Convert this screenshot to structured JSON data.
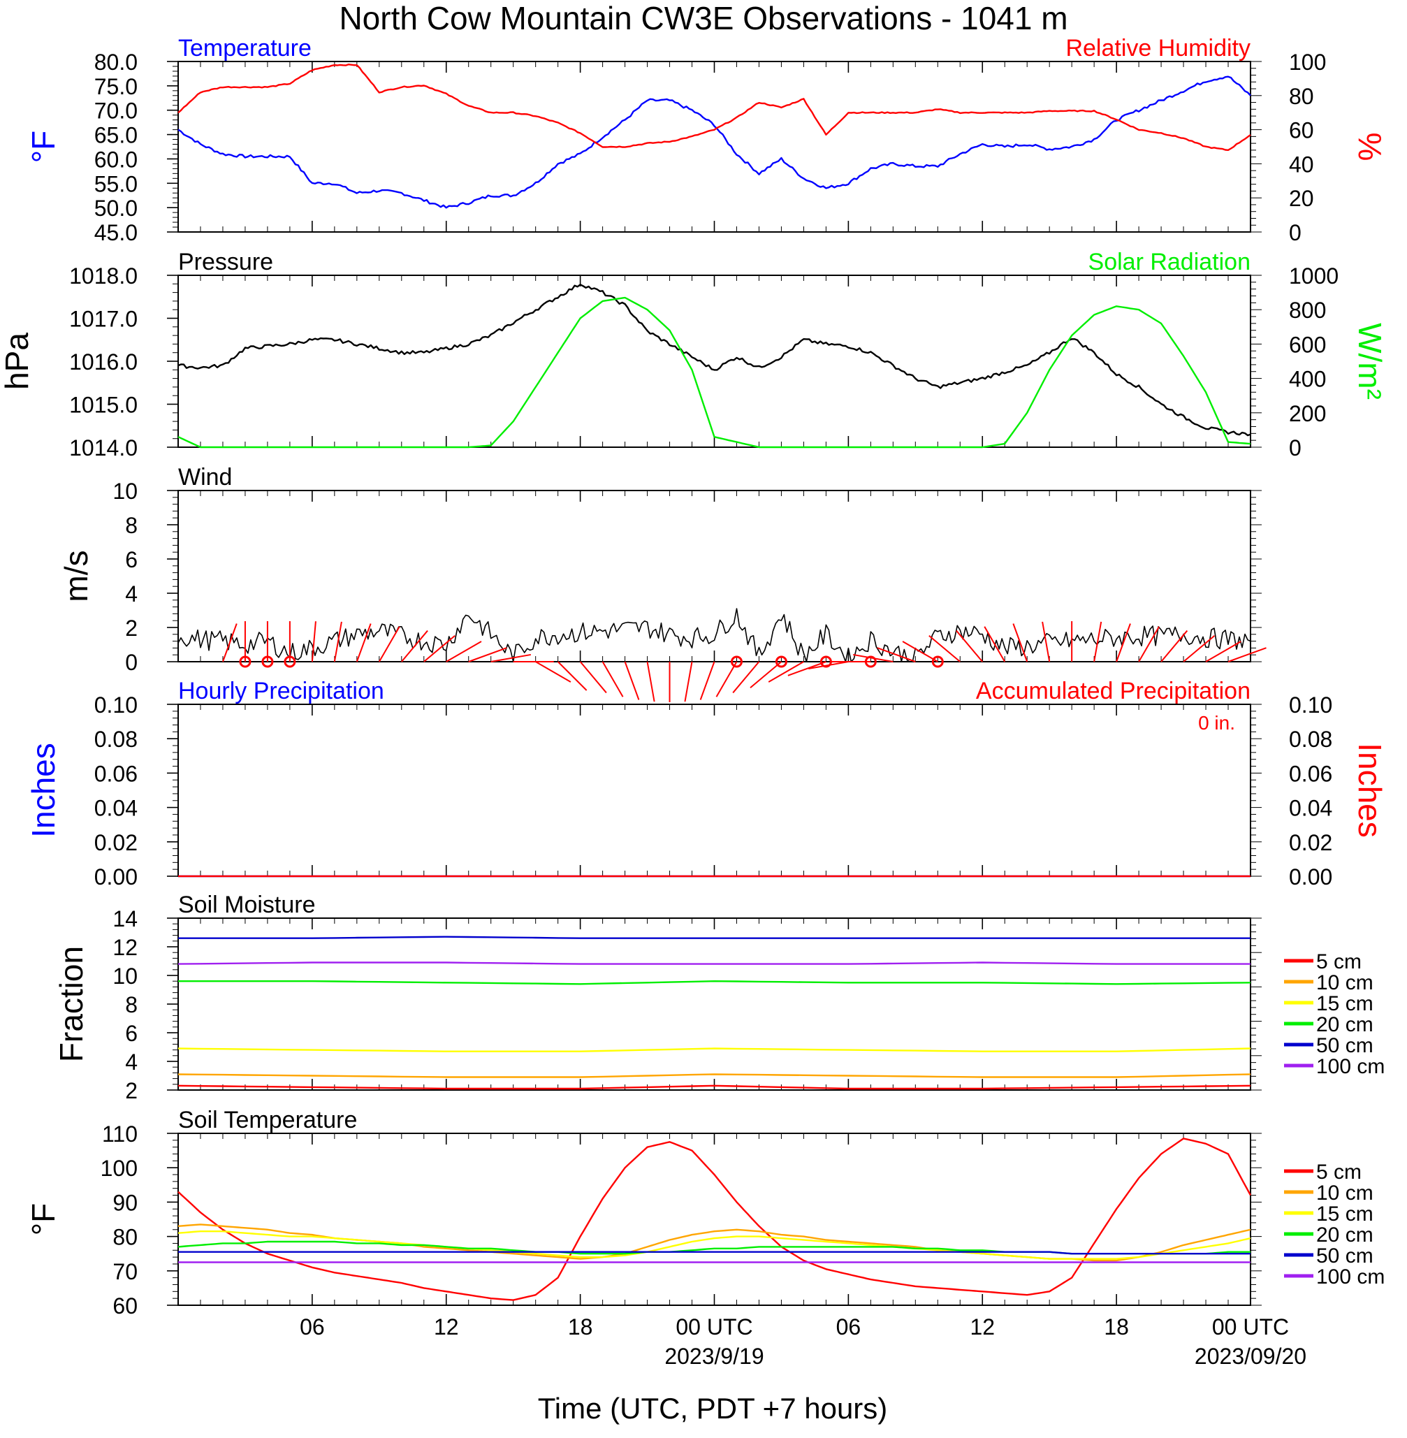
{
  "title": "North Cow Mountain CW3E Observations - 1041 m",
  "x_axis": {
    "title": "Time (UTC, PDT +7 hours)",
    "tick_labels": [
      "06",
      "12",
      "18",
      "00 UTC",
      "06",
      "12",
      "18",
      "00 UTC"
    ],
    "date_labels": [
      "2023/9/19",
      "2023/09/20"
    ]
  },
  "colors": {
    "temperature": "#0000ff",
    "humidity": "#ff0000",
    "pressure": "#000000",
    "solar": "#00ee00",
    "wind": "#000000",
    "barb": "#ff0000",
    "precip_hourly": "#0000ff",
    "precip_accum": "#ff0000",
    "depth_5cm": "#ff0000",
    "depth_10cm": "#ffa500",
    "depth_15cm": "#ffff00",
    "depth_20cm": "#00ee00",
    "depth_50cm": "#0000cd",
    "depth_100cm": "#a020f0"
  },
  "chart_data": [
    {
      "id": "temp_rh",
      "type": "line",
      "title_left": "Temperature",
      "title_right": "Relative Humidity",
      "ylabel_left": "°F",
      "ylabel_right": "%",
      "ylim_left": [
        45,
        80
      ],
      "ylim_right": [
        0,
        100
      ],
      "ytick_labels_left": [
        "45.0",
        "50.0",
        "55.0",
        "60.0",
        "65.0",
        "70.0",
        "75.0",
        "80.0"
      ],
      "ytick_labels_right": [
        "0",
        "20",
        "40",
        "60",
        "80",
        "100"
      ],
      "x_hours": [
        0,
        1,
        2,
        3,
        4,
        5,
        6,
        7,
        8,
        9,
        10,
        11,
        12,
        13,
        14,
        15,
        16,
        17,
        18,
        19,
        20,
        21,
        22,
        23,
        24,
        25,
        26,
        27,
        28,
        29,
        30,
        31,
        32,
        33,
        34,
        35,
        36,
        37,
        38,
        39,
        40,
        41,
        42,
        43,
        44,
        45,
        46,
        47,
        48
      ],
      "series": [
        {
          "name": "Temperature",
          "axis": "left",
          "values": [
            66,
            63,
            61,
            60.5,
            60.5,
            60.5,
            55,
            55,
            53,
            53.5,
            53,
            51.5,
            50,
            51,
            52.5,
            52.5,
            55,
            59,
            61,
            64.5,
            68,
            72,
            72,
            70,
            67,
            61,
            57,
            60,
            56,
            54,
            55,
            58,
            59,
            58.5,
            58.5,
            61,
            63,
            62.5,
            63,
            62,
            62.5,
            64,
            68,
            70,
            72,
            74,
            76,
            77,
            73
          ]
        },
        {
          "name": "Relative Humidity",
          "axis": "right",
          "values": [
            70,
            82,
            85,
            85,
            85,
            87,
            95,
            98,
            98,
            82,
            85,
            86,
            81,
            74,
            70,
            70,
            68,
            64,
            58,
            50,
            50,
            52,
            53,
            56,
            60,
            67,
            76,
            73,
            78,
            57,
            70,
            70,
            70,
            70,
            72,
            70,
            70,
            70,
            70,
            71,
            71,
            71,
            66,
            60,
            58,
            55,
            50,
            48,
            57
          ]
        }
      ]
    },
    {
      "id": "pressure_solar",
      "type": "line",
      "title_left": "Pressure",
      "title_right": "Solar Radiation",
      "ylabel_left": "hPa",
      "ylabel_right": "W/m²",
      "ylim_left": [
        1014.0,
        1018.0
      ],
      "ylim_right": [
        0,
        1000
      ],
      "ytick_labels_left": [
        "1014.0",
        "1015.0",
        "1016.0",
        "1017.0",
        "1018.0"
      ],
      "ytick_labels_right": [
        "0",
        "200",
        "400",
        "600",
        "800",
        "1000"
      ],
      "x_hours": [
        0,
        1,
        2,
        3,
        4,
        5,
        6,
        7,
        8,
        9,
        10,
        11,
        12,
        13,
        14,
        15,
        16,
        17,
        18,
        19,
        20,
        21,
        22,
        23,
        24,
        25,
        26,
        27,
        28,
        29,
        30,
        31,
        32,
        33,
        34,
        35,
        36,
        37,
        38,
        39,
        40,
        41,
        42,
        43,
        44,
        45,
        46,
        47,
        48
      ],
      "series": [
        {
          "name": "Pressure",
          "axis": "left",
          "values": [
            1015.9,
            1015.85,
            1015.9,
            1016.3,
            1016.35,
            1016.4,
            1016.5,
            1016.5,
            1016.4,
            1016.3,
            1016.2,
            1016.2,
            1016.3,
            1016.4,
            1016.6,
            1016.9,
            1017.2,
            1017.5,
            1017.8,
            1017.6,
            1017.3,
            1016.7,
            1016.4,
            1016.1,
            1015.8,
            1016.1,
            1015.85,
            1016.1,
            1016.5,
            1016.4,
            1016.35,
            1016.2,
            1015.9,
            1015.6,
            1015.4,
            1015.5,
            1015.6,
            1015.75,
            1015.9,
            1016.2,
            1016.55,
            1016.2,
            1015.7,
            1015.4,
            1015.0,
            1014.7,
            1014.45,
            1014.35,
            1014.3
          ]
        },
        {
          "name": "Solar Radiation",
          "axis": "right",
          "values": [
            60,
            0,
            0,
            0,
            0,
            0,
            0,
            0,
            0,
            0,
            0,
            0,
            0,
            0,
            10,
            150,
            350,
            550,
            750,
            850,
            870,
            800,
            680,
            450,
            60,
            30,
            0,
            0,
            0,
            0,
            0,
            0,
            0,
            0,
            0,
            0,
            0,
            20,
            200,
            450,
            650,
            770,
            820,
            800,
            720,
            530,
            320,
            30,
            20
          ]
        }
      ]
    },
    {
      "id": "wind",
      "type": "line",
      "title_left": "Wind",
      "ylabel_left": "m/s",
      "ylim_left": [
        0,
        10
      ],
      "ytick_labels_left": [
        "0",
        "2",
        "4",
        "6",
        "8",
        "10"
      ],
      "x_hours": [
        0,
        1,
        2,
        3,
        4,
        5,
        6,
        7,
        8,
        9,
        10,
        11,
        12,
        13,
        14,
        15,
        16,
        17,
        18,
        19,
        20,
        21,
        22,
        23,
        24,
        25,
        26,
        27,
        28,
        29,
        30,
        31,
        32,
        33,
        34,
        35,
        36,
        37,
        38,
        39,
        40,
        41,
        42,
        43,
        44,
        45,
        46,
        47,
        48
      ],
      "series": [
        {
          "name": "Wind speed",
          "axis": "left",
          "values": [
            1.5,
            1.3,
            1.2,
            1.0,
            1.2,
            0.5,
            0.8,
            1.2,
            1.6,
            1.8,
            1.5,
            1.2,
            1.0,
            2.8,
            1.6,
            0.3,
            1.4,
            1.6,
            1.7,
            1.8,
            1.9,
            2.0,
            1.6,
            1.4,
            1.6,
            2.8,
            0.3,
            2.8,
            0.3,
            1.6,
            0.2,
            1.3,
            0.6,
            0.2,
            1.5,
            1.8,
            1.6,
            0.8,
            0.9,
            1.1,
            1.2,
            1.3,
            1.4,
            1.5,
            1.5,
            1.6,
            1.4,
            1.3,
            1.2
          ]
        }
      ],
      "barb_hours": [
        2,
        3,
        4,
        5,
        6,
        7,
        8,
        9,
        10,
        11,
        12,
        13,
        14,
        15,
        16,
        17,
        18,
        19,
        20,
        21,
        22,
        23,
        24,
        25,
        26,
        27,
        28,
        29,
        30,
        31,
        32,
        33,
        34,
        35,
        36,
        37,
        38,
        39,
        40,
        41,
        42,
        43,
        44,
        45,
        46,
        47
      ],
      "barb_angles_deg": [
        20,
        0,
        0,
        0,
        5,
        10,
        20,
        30,
        40,
        50,
        60,
        70,
        80,
        90,
        120,
        135,
        140,
        150,
        160,
        170,
        180,
        190,
        200,
        210,
        220,
        230,
        240,
        250,
        260,
        270,
        280,
        290,
        300,
        310,
        320,
        330,
        340,
        350,
        0,
        10,
        20,
        30,
        40,
        50,
        60,
        70
      ],
      "calm_hours": [
        3,
        4,
        5,
        25,
        27,
        29,
        31,
        34
      ]
    },
    {
      "id": "precip",
      "type": "line",
      "title_left": "Hourly Precipitation",
      "title_right": "Accumulated Precipitation",
      "annotation": "0 in.",
      "ylabel_left": "Inches",
      "ylabel_right": "Inches",
      "ylim_left": [
        0,
        0.1
      ],
      "ylim_right": [
        0,
        0.1
      ],
      "ytick_labels_left": [
        "0.00",
        "0.02",
        "0.04",
        "0.06",
        "0.08",
        "0.10"
      ],
      "ytick_labels_right": [
        "0.00",
        "0.02",
        "0.04",
        "0.06",
        "0.08",
        "0.10"
      ],
      "x_hours": [
        0,
        48
      ],
      "series": [
        {
          "name": "Hourly Precipitation",
          "axis": "left",
          "values": [
            0,
            0
          ]
        },
        {
          "name": "Accumulated Precipitation",
          "axis": "right",
          "values": [
            0,
            0
          ]
        }
      ]
    },
    {
      "id": "soil_moisture",
      "type": "line",
      "title_left": "Soil Moisture",
      "ylabel_left": "Fraction",
      "ylim_left": [
        2,
        14
      ],
      "ytick_labels_left": [
        "2",
        "4",
        "6",
        "8",
        "10",
        "12",
        "14"
      ],
      "x_hours": [
        0,
        6,
        12,
        18,
        24,
        30,
        36,
        42,
        48
      ],
      "series": [
        {
          "name": "5 cm",
          "values": [
            2.3,
            2.2,
            2.1,
            2.1,
            2.3,
            2.1,
            2.1,
            2.2,
            2.3
          ]
        },
        {
          "name": "10 cm",
          "values": [
            3.1,
            3.0,
            2.9,
            2.9,
            3.1,
            3.0,
            2.9,
            2.9,
            3.1
          ]
        },
        {
          "name": "15 cm",
          "values": [
            4.9,
            4.8,
            4.7,
            4.7,
            4.9,
            4.8,
            4.7,
            4.7,
            4.9
          ]
        },
        {
          "name": "20 cm",
          "values": [
            9.6,
            9.6,
            9.5,
            9.4,
            9.6,
            9.5,
            9.5,
            9.4,
            9.5
          ]
        },
        {
          "name": "50 cm",
          "values": [
            12.6,
            12.6,
            12.7,
            12.6,
            12.6,
            12.6,
            12.6,
            12.6,
            12.6
          ]
        },
        {
          "name": "100 cm",
          "values": [
            10.8,
            10.9,
            10.9,
            10.8,
            10.8,
            10.8,
            10.9,
            10.8,
            10.8
          ]
        }
      ],
      "legend": [
        "5 cm",
        "10 cm",
        "15 cm",
        "20 cm",
        "50 cm",
        "100 cm"
      ]
    },
    {
      "id": "soil_temp",
      "type": "line",
      "title_left": "Soil Temperature",
      "ylabel_left": "°F",
      "ylim_left": [
        60,
        110
      ],
      "ytick_labels_left": [
        "60",
        "70",
        "80",
        "90",
        "100",
        "110"
      ],
      "x_hours": [
        0,
        1,
        2,
        3,
        4,
        5,
        6,
        7,
        8,
        9,
        10,
        11,
        12,
        13,
        14,
        15,
        16,
        17,
        18,
        19,
        20,
        21,
        22,
        23,
        24,
        25,
        26,
        27,
        28,
        29,
        30,
        31,
        32,
        33,
        34,
        35,
        36,
        37,
        38,
        39,
        40,
        41,
        42,
        43,
        44,
        45,
        46,
        47,
        48
      ],
      "series": [
        {
          "name": "5 cm",
          "values": [
            93,
            87,
            82,
            78,
            75,
            73,
            71,
            69.5,
            68.5,
            67.5,
            66.5,
            65,
            64,
            63,
            62,
            61.5,
            63,
            68,
            80,
            91,
            100,
            106,
            107.5,
            105,
            98,
            90,
            83,
            77,
            73,
            70.5,
            69,
            67.5,
            66.5,
            65.5,
            65,
            64.5,
            64,
            63.5,
            63,
            64,
            68,
            78,
            88,
            97,
            104,
            108.5,
            107,
            104,
            92
          ]
        },
        {
          "name": "10 cm",
          "values": [
            83,
            83.5,
            83,
            82.5,
            82,
            81,
            80.5,
            79.5,
            79,
            78.5,
            78,
            77,
            76.5,
            76,
            75.5,
            75,
            74.5,
            74,
            73.5,
            74,
            75,
            77,
            79,
            80.5,
            81.5,
            82,
            81.5,
            80.5,
            80,
            79,
            78.5,
            78,
            77.5,
            77,
            76,
            75.5,
            75,
            74.5,
            74,
            73.5,
            73.5,
            73,
            73,
            74,
            75.5,
            77.5,
            79,
            80.5,
            82
          ]
        },
        {
          "name": "15 cm",
          "values": [
            81,
            81.5,
            81.5,
            81,
            80.5,
            80,
            80,
            79.5,
            79,
            78.5,
            78,
            77.5,
            77,
            76.5,
            76,
            75.5,
            75,
            74.5,
            74,
            74,
            74.5,
            75.5,
            77,
            78.5,
            79.5,
            80,
            80,
            79.5,
            79,
            78.5,
            78,
            77.5,
            77,
            76.5,
            76,
            75.5,
            75,
            74.5,
            74,
            73.5,
            73.5,
            73.5,
            73.5,
            74,
            75,
            76,
            77,
            78,
            79.5
          ]
        },
        {
          "name": "20 cm",
          "values": [
            77,
            77.5,
            78,
            78,
            78.5,
            78.5,
            78.5,
            78.5,
            78,
            78,
            77.5,
            77.5,
            77,
            76.5,
            76.5,
            76,
            75.5,
            75.5,
            75,
            75,
            75,
            75.5,
            75.5,
            76,
            76.5,
            76.5,
            77,
            77,
            77,
            77,
            77,
            77,
            77,
            76.5,
            76.5,
            76,
            76,
            75.5,
            75.5,
            75.5,
            75,
            75,
            75,
            75,
            75,
            75,
            75,
            75.5,
            75.5
          ]
        },
        {
          "name": "50 cm",
          "values": [
            75.5,
            75.5,
            75.5,
            75.5,
            75.5,
            75.5,
            75.5,
            75.5,
            75.5,
            75.5,
            75.5,
            75.5,
            75.5,
            75.5,
            75.5,
            75.5,
            75.5,
            75.5,
            75.5,
            75.5,
            75.5,
            75.5,
            75.5,
            75.5,
            75.5,
            75.5,
            75.5,
            75.5,
            75.5,
            75.5,
            75.5,
            75.5,
            75.5,
            75.5,
            75.5,
            75.5,
            75.5,
            75.5,
            75.5,
            75.5,
            75,
            75,
            75,
            75,
            75,
            75,
            75,
            75,
            75
          ]
        },
        {
          "name": "100 cm",
          "values": [
            72.5,
            72.5,
            72.5,
            72.5,
            72.5,
            72.5,
            72.5,
            72.5,
            72.5,
            72.5,
            72.5,
            72.5,
            72.5,
            72.5,
            72.5,
            72.5,
            72.5,
            72.5,
            72.5,
            72.5,
            72.5,
            72.5,
            72.5,
            72.5,
            72.5,
            72.5,
            72.5,
            72.5,
            72.5,
            72.5,
            72.5,
            72.5,
            72.5,
            72.5,
            72.5,
            72.5,
            72.5,
            72.5,
            72.5,
            72.5,
            72.5,
            72.5,
            72.5,
            72.5,
            72.5,
            72.5,
            72.5,
            72.5,
            72.5
          ]
        }
      ],
      "legend": [
        "5 cm",
        "10 cm",
        "15 cm",
        "20 cm",
        "50 cm",
        "100 cm"
      ]
    }
  ]
}
